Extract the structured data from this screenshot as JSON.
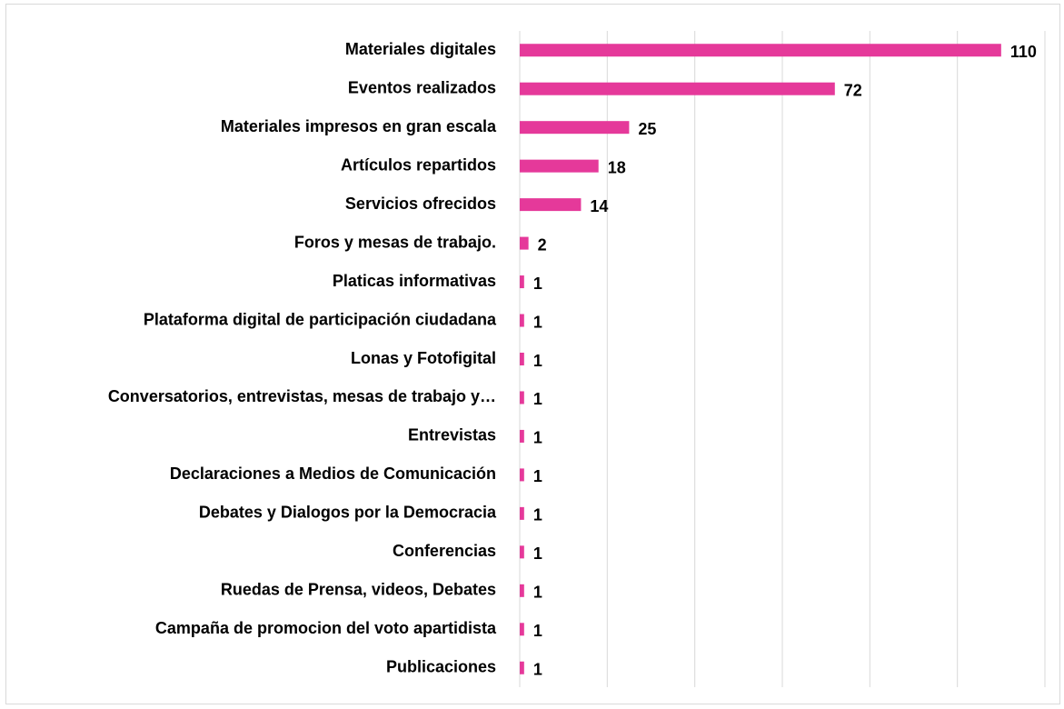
{
  "chart_data": {
    "type": "barh",
    "categories": [
      "Materiales digitales",
      "Eventos realizados",
      "Materiales impresos en gran escala",
      "Artículos repartidos",
      "Servicios ofrecidos",
      "Foros y mesas de trabajo.",
      "Platicas informativas",
      "Plataforma digital de participación ciudadana",
      "Lonas y Fotofigital",
      "Conversatorios, entrevistas, mesas de trabajo y…",
      "Entrevistas",
      "Declaraciones a Medios de Comunicación",
      "Debates y Dialogos por la Democracia",
      "Conferencias",
      "Ruedas de Prensa, videos, Debates",
      "Campaña de promocion del voto apartidista",
      "Publicaciones"
    ],
    "values": [
      110,
      72,
      25,
      18,
      14,
      2,
      1,
      1,
      1,
      1,
      1,
      1,
      1,
      1,
      1,
      1,
      1
    ],
    "color": "#e5399a",
    "xlim": [
      0,
      120
    ],
    "xticks": [
      0,
      20,
      40,
      60,
      80,
      100,
      120
    ],
    "grid": true
  }
}
